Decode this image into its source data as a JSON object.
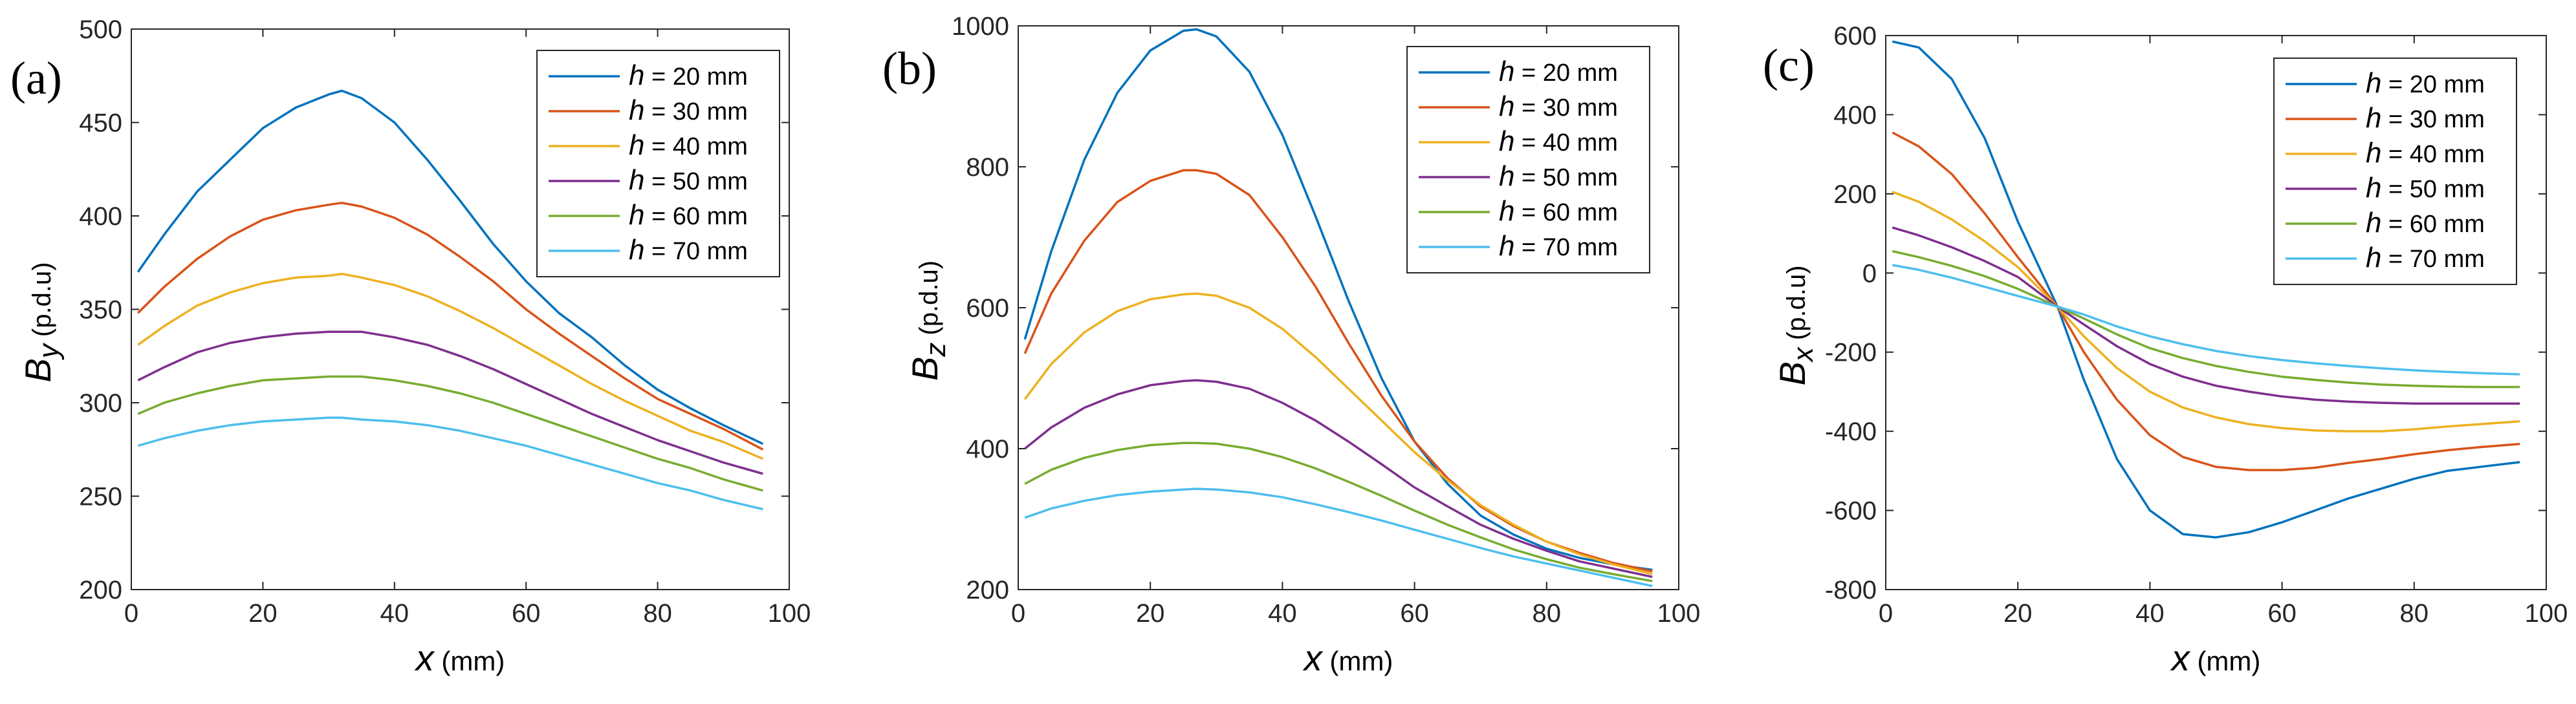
{
  "figure": {
    "series_names": [
      "h = 20 mm",
      "h = 30 mm",
      "h = 40 mm",
      "h = 50 mm",
      "h = 60 mm",
      "h = 70 mm"
    ],
    "series_colors": [
      "#0072BD",
      "#D95319",
      "#EDB120",
      "#7E2F8E",
      "#77AC30",
      "#4DBEEE"
    ]
  },
  "chart_data": [
    {
      "type": "line",
      "panel_label": "(a)",
      "title": "",
      "xlabel": "x (mm)",
      "ylabel": "By (p.d.u)",
      "xlim": [
        0,
        100
      ],
      "ylim": [
        200,
        500
      ],
      "xticks": [
        0,
        20,
        40,
        60,
        80,
        100
      ],
      "yticks": [
        200,
        250,
        300,
        350,
        400,
        450,
        500
      ],
      "legend_position": "top-right",
      "x": [
        1,
        5,
        10,
        15,
        20,
        25,
        30,
        32,
        35,
        40,
        45,
        50,
        55,
        60,
        65,
        70,
        75,
        80,
        85,
        90,
        96
      ],
      "series": [
        {
          "name": "h = 20 mm",
          "values": [
            370,
            390,
            413,
            430,
            447,
            458,
            465,
            467,
            463,
            450,
            430,
            408,
            385,
            365,
            348,
            335,
            320,
            307,
            297,
            288,
            278
          ]
        },
        {
          "name": "h = 30 mm",
          "values": [
            348,
            362,
            377,
            389,
            398,
            403,
            406,
            407,
            405,
            399,
            390,
            378,
            365,
            350,
            337,
            325,
            313,
            302,
            294,
            286,
            275
          ]
        },
        {
          "name": "h = 40 mm",
          "values": [
            331,
            341,
            352,
            359,
            364,
            367,
            368,
            369,
            367,
            363,
            357,
            349,
            340,
            330,
            320,
            310,
            301,
            293,
            285,
            279,
            270
          ]
        },
        {
          "name": "h = 50 mm",
          "values": [
            312,
            319,
            327,
            332,
            335,
            337,
            338,
            338,
            338,
            335,
            331,
            325,
            318,
            310,
            302,
            294,
            287,
            280,
            274,
            268,
            262
          ]
        },
        {
          "name": "h = 60 mm",
          "values": [
            294,
            300,
            305,
            309,
            312,
            313,
            314,
            314,
            314,
            312,
            309,
            305,
            300,
            294,
            288,
            282,
            276,
            270,
            265,
            259,
            253
          ]
        },
        {
          "name": "h = 70 mm",
          "values": [
            277,
            281,
            285,
            288,
            290,
            291,
            292,
            292,
            291,
            290,
            288,
            285,
            281,
            277,
            272,
            267,
            262,
            257,
            253,
            248,
            243
          ]
        }
      ]
    },
    {
      "type": "line",
      "panel_label": "(b)",
      "title": "",
      "xlabel": "x (mm)",
      "ylabel": "Bz (p.d.u)",
      "xlim": [
        0,
        100
      ],
      "ylim": [
        200,
        1000
      ],
      "xticks": [
        0,
        20,
        40,
        60,
        80,
        100
      ],
      "yticks": [
        200,
        400,
        600,
        800,
        1000
      ],
      "legend_position": "top-right",
      "x": [
        1,
        5,
        10,
        15,
        20,
        25,
        27,
        30,
        35,
        40,
        45,
        50,
        55,
        60,
        65,
        70,
        75,
        80,
        85,
        90,
        96
      ],
      "series": [
        {
          "name": "h = 20 mm",
          "values": [
            555,
            680,
            810,
            905,
            965,
            993,
            995,
            985,
            935,
            845,
            730,
            610,
            500,
            410,
            350,
            305,
            278,
            258,
            245,
            236,
            228
          ]
        },
        {
          "name": "h = 30 mm",
          "values": [
            535,
            620,
            695,
            750,
            780,
            795,
            795,
            790,
            760,
            700,
            630,
            550,
            475,
            410,
            358,
            318,
            290,
            268,
            252,
            238,
            226
          ]
        },
        {
          "name": "h = 40 mm",
          "values": [
            470,
            520,
            565,
            595,
            612,
            619,
            620,
            617,
            600,
            570,
            530,
            485,
            440,
            395,
            355,
            320,
            292,
            268,
            250,
            236,
            222
          ]
        },
        {
          "name": "h = 50 mm",
          "values": [
            400,
            430,
            458,
            477,
            490,
            496,
            497,
            495,
            485,
            465,
            440,
            410,
            378,
            345,
            318,
            292,
            272,
            255,
            240,
            230,
            218
          ]
        },
        {
          "name": "h = 60 mm",
          "values": [
            350,
            370,
            387,
            398,
            405,
            408,
            408,
            407,
            400,
            388,
            372,
            353,
            333,
            312,
            292,
            274,
            257,
            243,
            231,
            222,
            212
          ]
        },
        {
          "name": "h = 70 mm",
          "values": [
            302,
            315,
            326,
            334,
            339,
            342,
            343,
            342,
            338,
            331,
            321,
            310,
            298,
            285,
            272,
            259,
            247,
            237,
            227,
            217,
            205
          ]
        }
      ]
    },
    {
      "type": "line",
      "panel_label": "(c)",
      "title": "",
      "xlabel": "x (mm)",
      "ylabel": "Bx (p.d.u)",
      "xlim": [
        0,
        100
      ],
      "ylim": [
        -800,
        600
      ],
      "xticks": [
        0,
        20,
        40,
        60,
        80,
        100
      ],
      "yticks": [
        -800,
        -600,
        -400,
        -200,
        0,
        200,
        400,
        600
      ],
      "legend_position": "top-right",
      "x": [
        1,
        5,
        10,
        15,
        20,
        26,
        30,
        35,
        40,
        45,
        50,
        55,
        60,
        65,
        70,
        75,
        80,
        85,
        90,
        96
      ],
      "series": [
        {
          "name": "h = 20 mm",
          "values": [
            585,
            570,
            490,
            340,
            130,
            -85,
            -270,
            -470,
            -600,
            -660,
            -668,
            -655,
            -630,
            -600,
            -570,
            -545,
            -520,
            -500,
            -490,
            -478
          ]
        },
        {
          "name": "h = 30 mm",
          "values": [
            355,
            320,
            250,
            150,
            40,
            -85,
            -200,
            -320,
            -410,
            -465,
            -490,
            -498,
            -498,
            -492,
            -480,
            -470,
            -458,
            -448,
            -440,
            -432
          ]
        },
        {
          "name": "h = 40 mm",
          "values": [
            205,
            180,
            135,
            80,
            15,
            -85,
            -160,
            -240,
            -300,
            -340,
            -365,
            -382,
            -392,
            -398,
            -400,
            -400,
            -395,
            -388,
            -382,
            -375
          ]
        },
        {
          "name": "h = 50 mm",
          "values": [
            115,
            95,
            65,
            30,
            -10,
            -85,
            -130,
            -185,
            -230,
            -262,
            -285,
            -300,
            -312,
            -320,
            -325,
            -328,
            -330,
            -330,
            -330,
            -330
          ]
        },
        {
          "name": "h = 60 mm",
          "values": [
            55,
            40,
            18,
            -8,
            -40,
            -85,
            -115,
            -155,
            -190,
            -215,
            -235,
            -250,
            -262,
            -270,
            -277,
            -282,
            -285,
            -287,
            -288,
            -288
          ]
        },
        {
          "name": "h = 70 mm",
          "values": [
            20,
            8,
            -12,
            -35,
            -58,
            -85,
            -105,
            -135,
            -160,
            -180,
            -197,
            -210,
            -220,
            -228,
            -235,
            -241,
            -246,
            -250,
            -253,
            -256
          ]
        }
      ]
    }
  ]
}
